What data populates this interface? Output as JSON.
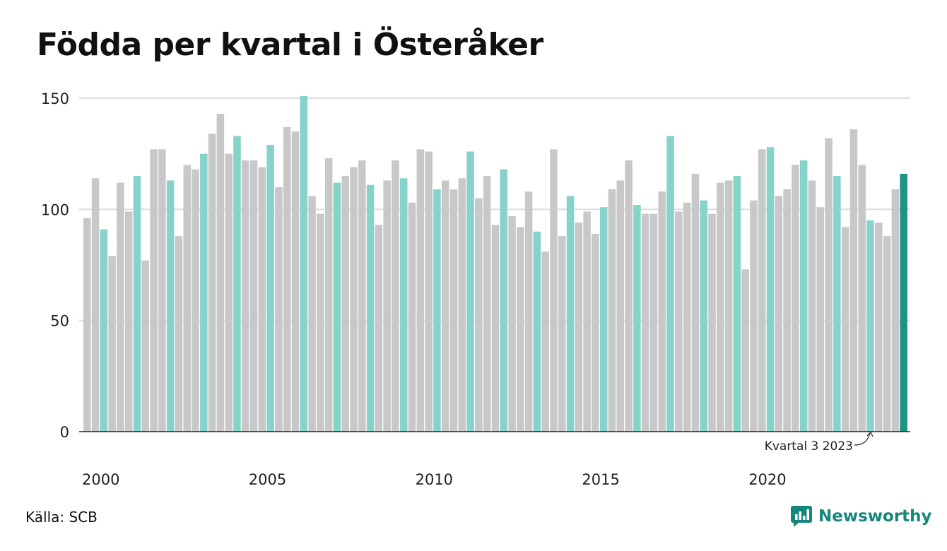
{
  "title": "Födda per kvartal i Österåker",
  "source": "Källa: SCB",
  "brand": "Newsworthy",
  "colors": {
    "grey": "#c8c8c8",
    "q3": "#86d3cb",
    "latest": "#1a9485",
    "grid": "#dddddd",
    "axis": "#222222"
  },
  "chart_data": {
    "type": "bar",
    "ylim": [
      0,
      150
    ],
    "yticks": [
      0,
      50,
      100,
      150
    ],
    "xticks": [
      "2000",
      "2005",
      "2010",
      "2015",
      "2020"
    ],
    "highlight": "Q3 of each year highlighted; latest quarter emphasized",
    "annotation": "Kvartal 3 2023",
    "series": [
      {
        "values": [
          96,
          114,
          91,
          79,
          112,
          99,
          115,
          77,
          127,
          127,
          113,
          88,
          120,
          118,
          125,
          134,
          143,
          125,
          133,
          122,
          122,
          119,
          129,
          110,
          137,
          135,
          151,
          106,
          98,
          123,
          112,
          115,
          119,
          122,
          111,
          93,
          113,
          122,
          114,
          103,
          127,
          126,
          109,
          113,
          109,
          114,
          126,
          105,
          115,
          93,
          118,
          97,
          92,
          108,
          90,
          81,
          127,
          88,
          106,
          94,
          99,
          89,
          101,
          109,
          113,
          122,
          102,
          98,
          98,
          108,
          133,
          99,
          103,
          116,
          104,
          98,
          112,
          113,
          115,
          73,
          104,
          127,
          128,
          106,
          109,
          120,
          122,
          113,
          101,
          132,
          115,
          92,
          136,
          120,
          95,
          94,
          88,
          109,
          116
        ]
      }
    ]
  }
}
